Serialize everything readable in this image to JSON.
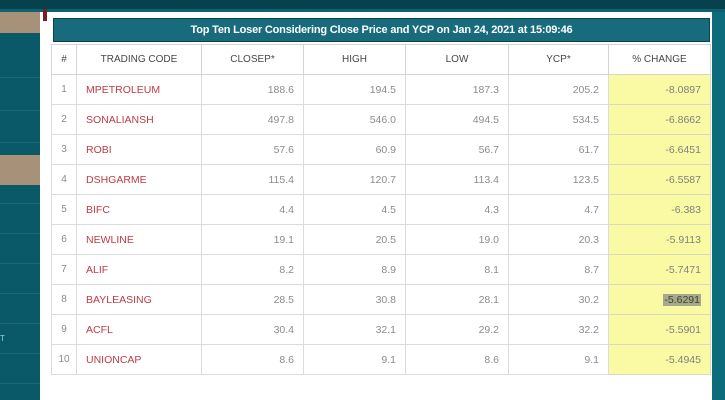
{
  "title_bar": {
    "text": "Top Ten Loser Considering Close Price and YCP on Jan 24, 2021 at 15:09:46"
  },
  "sidebar": {
    "mini_label": "T"
  },
  "colors": {
    "top_bar": "#06414d",
    "sidebar_teal": "#0a5968",
    "sidebar_tan": "#a79178",
    "title_bg": "#186a7d",
    "pct_column_yellow": "#fafaa4",
    "trading_code_red": "#bf3a45",
    "selection_highlight": "#a6a98c"
  },
  "table": {
    "columns": [
      {
        "key": "rank",
        "label": "#"
      },
      {
        "key": "code",
        "label": "TRADING CODE"
      },
      {
        "key": "closep",
        "label": "CLOSEP*"
      },
      {
        "key": "high",
        "label": "HIGH"
      },
      {
        "key": "low",
        "label": "LOW"
      },
      {
        "key": "ycp",
        "label": "YCP*"
      },
      {
        "key": "pct",
        "label": "% CHANGE"
      }
    ],
    "rows": [
      {
        "rank": "1",
        "code": "MPETROLEUM",
        "closep": "188.6",
        "high": "194.5",
        "low": "187.3",
        "ycp": "205.2",
        "pct": "-8.0897",
        "highlighted": false
      },
      {
        "rank": "2",
        "code": "SONALIANSH",
        "closep": "497.8",
        "high": "546.0",
        "low": "494.5",
        "ycp": "534.5",
        "pct": "-6.8662",
        "highlighted": false
      },
      {
        "rank": "3",
        "code": "ROBI",
        "closep": "57.6",
        "high": "60.9",
        "low": "56.7",
        "ycp": "61.7",
        "pct": "-6.6451",
        "highlighted": false
      },
      {
        "rank": "4",
        "code": "DSHGARME",
        "closep": "115.4",
        "high": "120.7",
        "low": "113.4",
        "ycp": "123.5",
        "pct": "-6.5587",
        "highlighted": false
      },
      {
        "rank": "5",
        "code": "BIFC",
        "closep": "4.4",
        "high": "4.5",
        "low": "4.3",
        "ycp": "4.7",
        "pct": "-6.383",
        "highlighted": false
      },
      {
        "rank": "6",
        "code": "NEWLINE",
        "closep": "19.1",
        "high": "20.5",
        "low": "19.0",
        "ycp": "20.3",
        "pct": "-5.9113",
        "highlighted": false
      },
      {
        "rank": "7",
        "code": "ALIF",
        "closep": "8.2",
        "high": "8.9",
        "low": "8.1",
        "ycp": "8.7",
        "pct": "-5.7471",
        "highlighted": false
      },
      {
        "rank": "8",
        "code": "BAYLEASING",
        "closep": "28.5",
        "high": "30.8",
        "low": "28.1",
        "ycp": "30.2",
        "pct": "-5.6291",
        "highlighted": true
      },
      {
        "rank": "9",
        "code": "ACFL",
        "closep": "30.4",
        "high": "32.1",
        "low": "29.2",
        "ycp": "32.2",
        "pct": "-5.5901",
        "highlighted": false
      },
      {
        "rank": "10",
        "code": "UNIONCAP",
        "closep": "8.6",
        "high": "9.1",
        "low": "8.6",
        "ycp": "9.1",
        "pct": "-5.4945",
        "highlighted": false
      }
    ]
  }
}
